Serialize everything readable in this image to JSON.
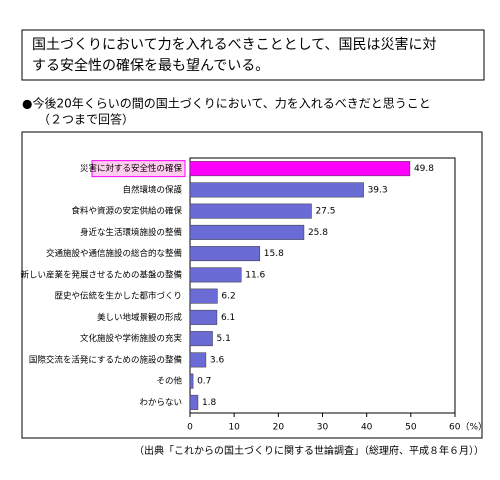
{
  "headline": [
    "国土づくりにおいて力を入れるべきこととして、国民は災害に対",
    "する安全性の確保を最も望んでいる。"
  ],
  "chart_data": {
    "type": "hbar",
    "title": "●今後20年くらいの間の国土づくりにおいて、力を入れるべきだと思うこと",
    "subtitle": "（２つまで回答）",
    "categories": [
      "災害に対する安全性の確保",
      "自然環境の保護",
      "食料や資源の安定供給の確保",
      "身近な生活環境施設の整備",
      "交通施設や通信施設の総合的な整備",
      "新しい産業を発展させるための基盤の整備",
      "歴史や伝統を生かした都市づくり",
      "美しい地域景観の形成",
      "文化施設や学術施設の充実",
      "国際交流を活発にするための施設の整備",
      "その他",
      "わからない"
    ],
    "values": [
      49.8,
      39.3,
      27.5,
      25.8,
      15.8,
      11.6,
      6.2,
      6.1,
      5.1,
      3.6,
      0.7,
      1.8
    ],
    "colors": [
      "#ff00ff",
      "#6b6bd6",
      "#6b6bd6",
      "#6b6bd6",
      "#6b6bd6",
      "#6b6bd6",
      "#6b6bd6",
      "#6b6bd6",
      "#6b6bd6",
      "#6b6bd6",
      "#6b6bd6",
      "#6b6bd6"
    ],
    "xlim": [
      0,
      60
    ],
    "xticks": [
      0,
      10,
      20,
      30,
      40,
      50,
      {
        "value": 60,
        "label": "60（%）"
      }
    ],
    "source": "（出典「これからの国土づくりに関する世論調査」（総理府、平成８年６月））"
  }
}
